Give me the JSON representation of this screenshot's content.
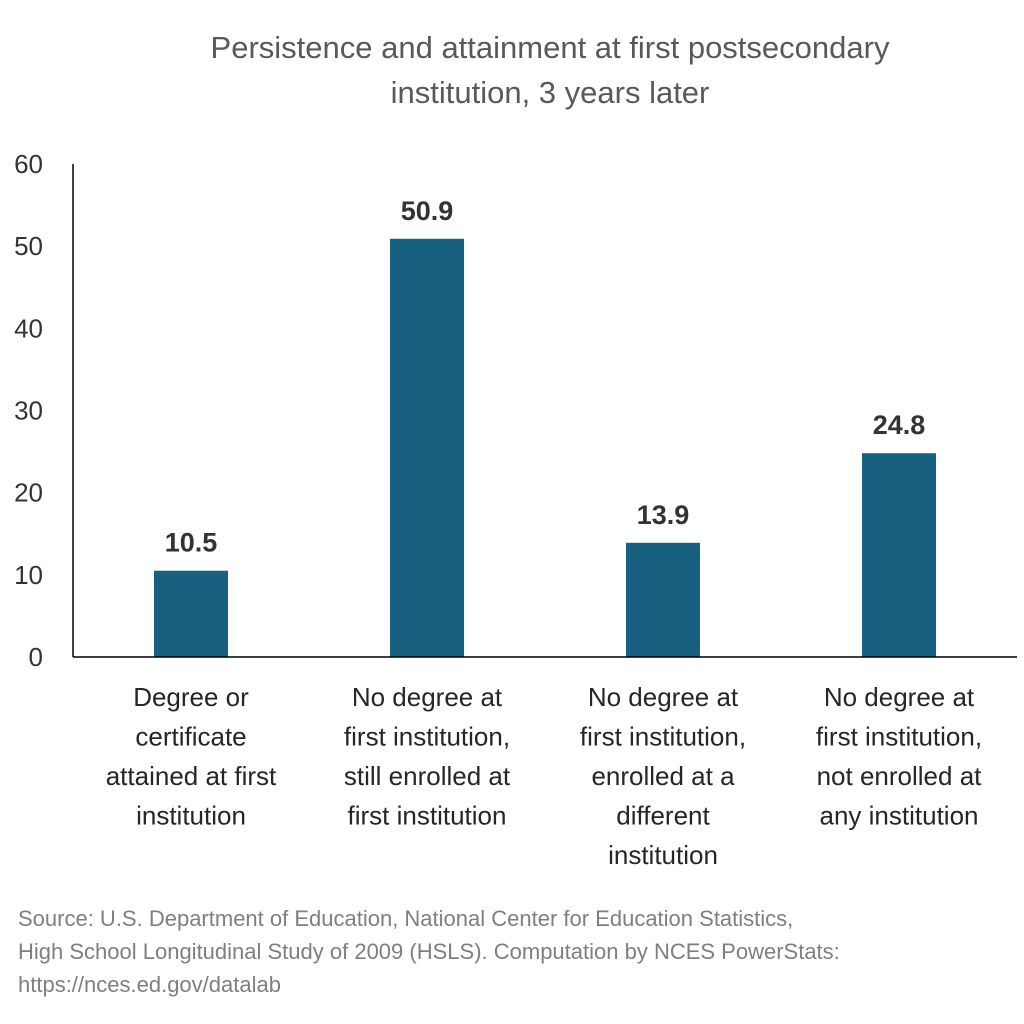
{
  "chart_data": {
    "type": "bar",
    "title": [
      "Persistence and attainment at first postsecondary",
      "institution, 3 years later"
    ],
    "categories": [
      [
        "Degree or",
        "certificate",
        "attained at first",
        "institution"
      ],
      [
        "No degree at",
        "first institution,",
        "still enrolled at",
        "first institution"
      ],
      [
        "No degree at",
        "first institution,",
        "enrolled at a",
        "different",
        "institution"
      ],
      [
        "No degree at",
        "first institution,",
        "not enrolled at",
        "any institution"
      ]
    ],
    "values": [
      10.5,
      50.9,
      13.9,
      24.8
    ],
    "value_labels": [
      "10.5",
      "50.9",
      "13.9",
      "24.8"
    ],
    "ylim": [
      0,
      60
    ],
    "yticks": [
      "0",
      "10",
      "20",
      "30",
      "40",
      "50",
      "60"
    ],
    "xlabel": "",
    "ylabel": "",
    "grid": false,
    "legend": "none",
    "bar_color": "#17607f"
  },
  "source": [
    "Source: U.S. Department of Education, National Center for Education Statistics,",
    "High School Longitudinal Study of 2009 (HSLS). Computation by NCES PowerStats:",
    "https://nces.ed.gov/datalab"
  ]
}
